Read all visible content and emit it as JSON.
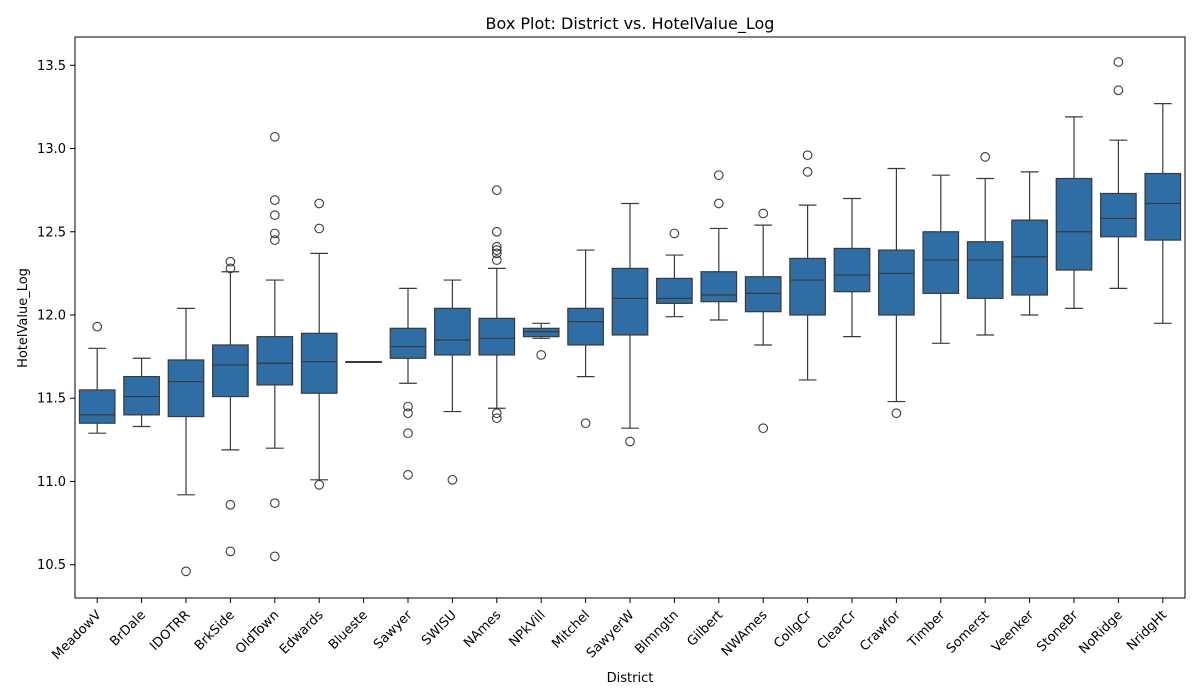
{
  "chart_data": {
    "type": "box",
    "title": "Box Plot: District vs. HotelValue_Log",
    "xlabel": "District",
    "ylabel": "HotelValue_Log",
    "ylim": [
      10.3,
      13.67
    ],
    "yticks": [
      "10.5",
      "11.0",
      "11.5",
      "12.0",
      "12.5",
      "13.0",
      "13.5"
    ],
    "grid": false,
    "box_color": "#2f6ea5",
    "edge_color": "#3a3a3a",
    "categories": [
      "MeadowV",
      "BrDale",
      "IDOTRR",
      "BrkSide",
      "OldTown",
      "Edwards",
      "Blueste",
      "Sawyer",
      "SWISU",
      "NAmes",
      "NPkVill",
      "Mitchel",
      "SawyerW",
      "Blmngtn",
      "Gilbert",
      "NWAmes",
      "CollgCr",
      "ClearCr",
      "Crawfor",
      "Timber",
      "Somerst",
      "Veenker",
      "StoneBr",
      "NoRidge",
      "NridgHt"
    ],
    "boxes": [
      {
        "category": "MeadowV",
        "whisker_low": 11.29,
        "q1": 11.35,
        "median": 11.4,
        "q3": 11.55,
        "whisker_high": 11.8,
        "outliers": [
          11.93
        ]
      },
      {
        "category": "BrDale",
        "whisker_low": 11.33,
        "q1": 11.4,
        "median": 11.51,
        "q3": 11.63,
        "whisker_high": 11.74,
        "outliers": []
      },
      {
        "category": "IDOTRR",
        "whisker_low": 10.92,
        "q1": 11.39,
        "median": 11.6,
        "q3": 11.73,
        "whisker_high": 12.04,
        "outliers": [
          10.46
        ]
      },
      {
        "category": "BrkSide",
        "whisker_low": 11.19,
        "q1": 11.51,
        "median": 11.7,
        "q3": 11.82,
        "whisker_high": 12.26,
        "outliers": [
          12.32,
          12.28,
          10.86,
          10.58
        ]
      },
      {
        "category": "OldTown",
        "whisker_low": 11.2,
        "q1": 11.58,
        "median": 11.71,
        "q3": 11.87,
        "whisker_high": 12.21,
        "outliers": [
          13.07,
          12.69,
          12.6,
          12.49,
          12.45,
          10.87,
          10.55
        ]
      },
      {
        "category": "Edwards",
        "whisker_low": 11.01,
        "q1": 11.53,
        "median": 11.72,
        "q3": 11.89,
        "whisker_high": 12.37,
        "outliers": [
          12.67,
          12.52,
          10.98
        ]
      },
      {
        "category": "Blueste",
        "whisker_low": 11.72,
        "q1": 11.72,
        "median": 11.72,
        "q3": 11.72,
        "whisker_high": 11.72,
        "outliers": []
      },
      {
        "category": "Sawyer",
        "whisker_low": 11.59,
        "q1": 11.74,
        "median": 11.81,
        "q3": 11.92,
        "whisker_high": 12.16,
        "outliers": [
          11.45,
          11.41,
          11.29,
          11.04
        ]
      },
      {
        "category": "SWISU",
        "whisker_low": 11.42,
        "q1": 11.76,
        "median": 11.85,
        "q3": 12.04,
        "whisker_high": 12.21,
        "outliers": [
          11.01
        ]
      },
      {
        "category": "NAmes",
        "whisker_low": 11.44,
        "q1": 11.76,
        "median": 11.86,
        "q3": 11.98,
        "whisker_high": 12.28,
        "outliers": [
          12.75,
          12.5,
          12.41,
          12.39,
          12.37,
          12.33,
          11.41,
          11.38
        ]
      },
      {
        "category": "NPkVill",
        "whisker_low": 11.86,
        "q1": 11.87,
        "median": 11.9,
        "q3": 11.92,
        "whisker_high": 11.95,
        "outliers": [
          11.76
        ]
      },
      {
        "category": "Mitchel",
        "whisker_low": 11.63,
        "q1": 11.82,
        "median": 11.96,
        "q3": 12.04,
        "whisker_high": 12.39,
        "outliers": [
          11.35
        ]
      },
      {
        "category": "SawyerW",
        "whisker_low": 11.32,
        "q1": 11.88,
        "median": 12.1,
        "q3": 12.28,
        "whisker_high": 12.67,
        "outliers": [
          11.24
        ]
      },
      {
        "category": "Blmngtn",
        "whisker_low": 11.99,
        "q1": 12.07,
        "median": 12.1,
        "q3": 12.22,
        "whisker_high": 12.36,
        "outliers": [
          12.49
        ]
      },
      {
        "category": "Gilbert",
        "whisker_low": 11.97,
        "q1": 12.08,
        "median": 12.12,
        "q3": 12.26,
        "whisker_high": 12.52,
        "outliers": [
          12.84,
          12.67
        ]
      },
      {
        "category": "NWAmes",
        "whisker_low": 11.82,
        "q1": 12.02,
        "median": 12.13,
        "q3": 12.23,
        "whisker_high": 12.54,
        "outliers": [
          12.61,
          11.32
        ]
      },
      {
        "category": "CollgCr",
        "whisker_low": 11.61,
        "q1": 12.0,
        "median": 12.21,
        "q3": 12.34,
        "whisker_high": 12.66,
        "outliers": [
          12.96,
          12.86
        ]
      },
      {
        "category": "ClearCr",
        "whisker_low": 11.87,
        "q1": 12.14,
        "median": 12.24,
        "q3": 12.4,
        "whisker_high": 12.7,
        "outliers": []
      },
      {
        "category": "Crawfor",
        "whisker_low": 11.48,
        "q1": 12.0,
        "median": 12.25,
        "q3": 12.39,
        "whisker_high": 12.88,
        "outliers": [
          11.41
        ]
      },
      {
        "category": "Timber",
        "whisker_low": 11.83,
        "q1": 12.13,
        "median": 12.33,
        "q3": 12.5,
        "whisker_high": 12.84,
        "outliers": []
      },
      {
        "category": "Somerst",
        "whisker_low": 11.88,
        "q1": 12.1,
        "median": 12.33,
        "q3": 12.44,
        "whisker_high": 12.82,
        "outliers": [
          12.95
        ]
      },
      {
        "category": "Veenker",
        "whisker_low": 12.0,
        "q1": 12.12,
        "median": 12.35,
        "q3": 12.57,
        "whisker_high": 12.86,
        "outliers": []
      },
      {
        "category": "StoneBr",
        "whisker_low": 12.04,
        "q1": 12.27,
        "median": 12.5,
        "q3": 12.82,
        "whisker_high": 13.19,
        "outliers": []
      },
      {
        "category": "NoRidge",
        "whisker_low": 12.16,
        "q1": 12.47,
        "median": 12.58,
        "q3": 12.73,
        "whisker_high": 13.05,
        "outliers": [
          13.52,
          13.35
        ]
      },
      {
        "category": "NridgHt",
        "whisker_low": 11.95,
        "q1": 12.45,
        "median": 12.67,
        "q3": 12.85,
        "whisker_high": 13.27,
        "outliers": []
      }
    ]
  }
}
